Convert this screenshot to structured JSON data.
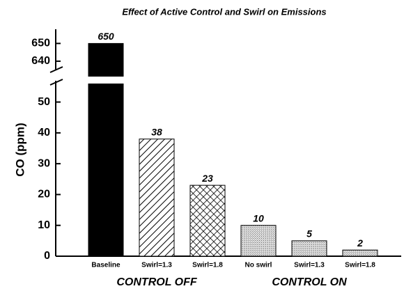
{
  "chart_data": {
    "type": "bar",
    "title": "Effect of Active Control and Swirl on Emissions",
    "y_label": "CO (ppm)",
    "categories": [
      "Baseline",
      "Swirl=1.3",
      "Swirl=1.8",
      "No swirl",
      "Swirl=1.3",
      "Swirl=1.8"
    ],
    "values": [
      650,
      38,
      23,
      10,
      5,
      2
    ],
    "patterns": [
      "solid",
      "hatch",
      "crosshatch",
      "stipple",
      "stipple",
      "stipple"
    ],
    "color": "#000000",
    "groups": [
      {
        "label": "CONTROL OFF",
        "from": 0,
        "to": 2
      },
      {
        "label": "CONTROL ON",
        "from": 3,
        "to": 5
      }
    ],
    "ylim": [
      0,
      658
    ],
    "ybreak": [
      56,
      638
    ],
    "yticks": [
      0,
      10,
      20,
      30,
      40,
      50,
      640,
      650
    ]
  }
}
